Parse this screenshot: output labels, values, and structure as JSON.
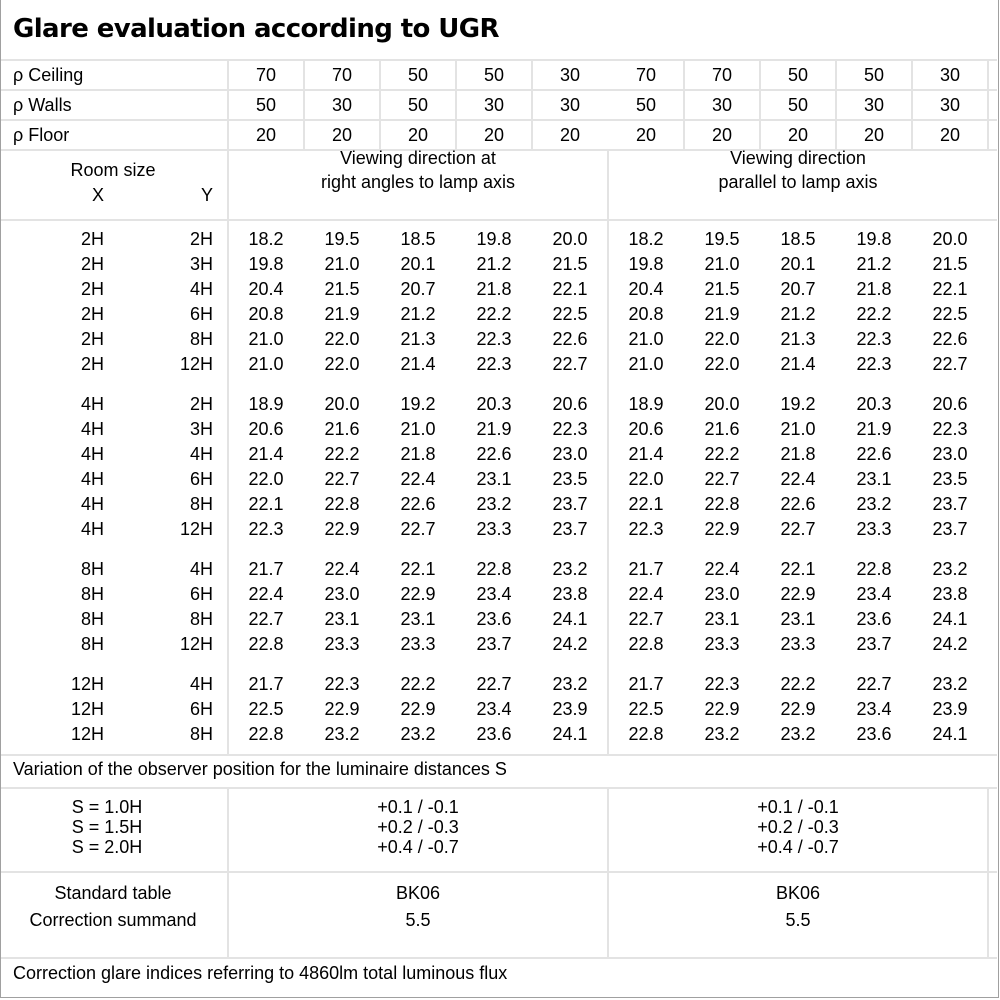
{
  "title": "Glare evaluation according to UGR",
  "reflectances": [
    {
      "label": "ρ Ceiling",
      "values": [
        "70",
        "70",
        "50",
        "50",
        "30",
        "70",
        "70",
        "50",
        "50",
        "30"
      ]
    },
    {
      "label": "ρ Walls",
      "values": [
        "50",
        "30",
        "50",
        "30",
        "30",
        "50",
        "30",
        "50",
        "30",
        "30"
      ]
    },
    {
      "label": "ρ Floor",
      "values": [
        "20",
        "20",
        "20",
        "20",
        "20",
        "20",
        "20",
        "20",
        "20",
        "20"
      ]
    }
  ],
  "room_size": {
    "label": "Room size",
    "x": "X",
    "y": "Y"
  },
  "viewing": [
    {
      "line1": "Viewing direction at",
      "line2": "right angles to lamp axis"
    },
    {
      "line1": "Viewing direction",
      "line2": "parallel to lamp axis"
    }
  ],
  "groups": [
    [
      {
        "x": "2H",
        "y": "2H",
        "v": [
          "18.2",
          "19.5",
          "18.5",
          "19.8",
          "20.0",
          "18.2",
          "19.5",
          "18.5",
          "19.8",
          "20.0"
        ]
      },
      {
        "x": "2H",
        "y": "3H",
        "v": [
          "19.8",
          "21.0",
          "20.1",
          "21.2",
          "21.5",
          "19.8",
          "21.0",
          "20.1",
          "21.2",
          "21.5"
        ]
      },
      {
        "x": "2H",
        "y": "4H",
        "v": [
          "20.4",
          "21.5",
          "20.7",
          "21.8",
          "22.1",
          "20.4",
          "21.5",
          "20.7",
          "21.8",
          "22.1"
        ]
      },
      {
        "x": "2H",
        "y": "6H",
        "v": [
          "20.8",
          "21.9",
          "21.2",
          "22.2",
          "22.5",
          "20.8",
          "21.9",
          "21.2",
          "22.2",
          "22.5"
        ]
      },
      {
        "x": "2H",
        "y": "8H",
        "v": [
          "21.0",
          "22.0",
          "21.3",
          "22.3",
          "22.6",
          "21.0",
          "22.0",
          "21.3",
          "22.3",
          "22.6"
        ]
      },
      {
        "x": "2H",
        "y": "12H",
        "v": [
          "21.0",
          "22.0",
          "21.4",
          "22.3",
          "22.7",
          "21.0",
          "22.0",
          "21.4",
          "22.3",
          "22.7"
        ]
      }
    ],
    [
      {
        "x": "4H",
        "y": "2H",
        "v": [
          "18.9",
          "20.0",
          "19.2",
          "20.3",
          "20.6",
          "18.9",
          "20.0",
          "19.2",
          "20.3",
          "20.6"
        ]
      },
      {
        "x": "4H",
        "y": "3H",
        "v": [
          "20.6",
          "21.6",
          "21.0",
          "21.9",
          "22.3",
          "20.6",
          "21.6",
          "21.0",
          "21.9",
          "22.3"
        ]
      },
      {
        "x": "4H",
        "y": "4H",
        "v": [
          "21.4",
          "22.2",
          "21.8",
          "22.6",
          "23.0",
          "21.4",
          "22.2",
          "21.8",
          "22.6",
          "23.0"
        ]
      },
      {
        "x": "4H",
        "y": "6H",
        "v": [
          "22.0",
          "22.7",
          "22.4",
          "23.1",
          "23.5",
          "22.0",
          "22.7",
          "22.4",
          "23.1",
          "23.5"
        ]
      },
      {
        "x": "4H",
        "y": "8H",
        "v": [
          "22.1",
          "22.8",
          "22.6",
          "23.2",
          "23.7",
          "22.1",
          "22.8",
          "22.6",
          "23.2",
          "23.7"
        ]
      },
      {
        "x": "4H",
        "y": "12H",
        "v": [
          "22.3",
          "22.9",
          "22.7",
          "23.3",
          "23.7",
          "22.3",
          "22.9",
          "22.7",
          "23.3",
          "23.7"
        ]
      }
    ],
    [
      {
        "x": "8H",
        "y": "4H",
        "v": [
          "21.7",
          "22.4",
          "22.1",
          "22.8",
          "23.2",
          "21.7",
          "22.4",
          "22.1",
          "22.8",
          "23.2"
        ]
      },
      {
        "x": "8H",
        "y": "6H",
        "v": [
          "22.4",
          "23.0",
          "22.9",
          "23.4",
          "23.8",
          "22.4",
          "23.0",
          "22.9",
          "23.4",
          "23.8"
        ]
      },
      {
        "x": "8H",
        "y": "8H",
        "v": [
          "22.7",
          "23.1",
          "23.1",
          "23.6",
          "24.1",
          "22.7",
          "23.1",
          "23.1",
          "23.6",
          "24.1"
        ]
      },
      {
        "x": "8H",
        "y": "12H",
        "v": [
          "22.8",
          "23.3",
          "23.3",
          "23.7",
          "24.2",
          "22.8",
          "23.3",
          "23.3",
          "23.7",
          "24.2"
        ]
      }
    ],
    [
      {
        "x": "12H",
        "y": "4H",
        "v": [
          "21.7",
          "22.3",
          "22.2",
          "22.7",
          "23.2",
          "21.7",
          "22.3",
          "22.2",
          "22.7",
          "23.2"
        ]
      },
      {
        "x": "12H",
        "y": "6H",
        "v": [
          "22.5",
          "22.9",
          "22.9",
          "23.4",
          "23.9",
          "22.5",
          "22.9",
          "22.9",
          "23.4",
          "23.9"
        ]
      },
      {
        "x": "12H",
        "y": "8H",
        "v": [
          "22.8",
          "23.2",
          "23.2",
          "23.6",
          "24.1",
          "22.8",
          "23.2",
          "23.2",
          "23.6",
          "24.1"
        ]
      }
    ]
  ],
  "variation_label": "Variation of the observer position for the luminaire distances S",
  "variation": [
    {
      "s": "S = 1.0H",
      "left": "+0.1 / -0.1",
      "right": "+0.1 / -0.1"
    },
    {
      "s": "S = 1.5H",
      "left": "+0.2 / -0.3",
      "right": "+0.2 / -0.3"
    },
    {
      "s": "S = 2.0H",
      "left": "+0.4 / -0.7",
      "right": "+0.4 / -0.7"
    }
  ],
  "standard": {
    "label": "Standard table",
    "left": "BK06",
    "right": "BK06"
  },
  "correction": {
    "label": "Correction summand",
    "left": "5.5",
    "right": "5.5"
  },
  "footer": "Correction glare indices referring to 4860lm total luminous flux",
  "colors": {
    "grid": "#e3e3e3",
    "border": "#a0a0a0",
    "text": "#000000"
  }
}
